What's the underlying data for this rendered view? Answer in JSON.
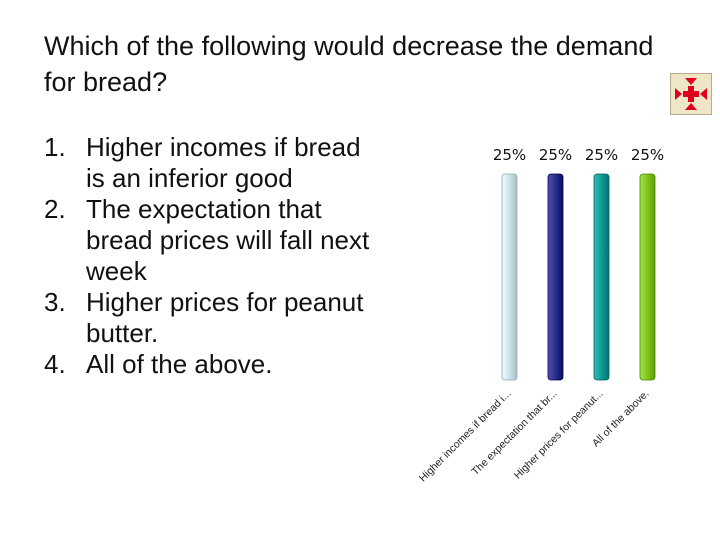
{
  "question": {
    "title": "Which of the following would decrease the demand for bread?"
  },
  "options": [
    {
      "number": "1.",
      "text": "Higher incomes if bread is an inferior good"
    },
    {
      "number": "2.",
      "text": "The expectation that bread prices will fall next week"
    },
    {
      "number": "3.",
      "text": "Higher prices for peanut butter."
    },
    {
      "number": "4.",
      "text": "All of the above."
    }
  ],
  "icon": {
    "name": "countdown-arrows-icon",
    "color": "#e0001b"
  },
  "chart_data": {
    "type": "bar",
    "categories": [
      "Higher incomes if bread i...",
      "The expectation that br...",
      "Higher prices for peanut...",
      "All of the above."
    ],
    "values": [
      25,
      25,
      25,
      25
    ],
    "value_labels": [
      "25%",
      "25%",
      "25%",
      "25%"
    ],
    "ylim": [
      0,
      25
    ],
    "grid": false,
    "colors": [
      "#c9e3e9",
      "#2b2f8a",
      "#0f9a94",
      "#80c21f"
    ]
  }
}
